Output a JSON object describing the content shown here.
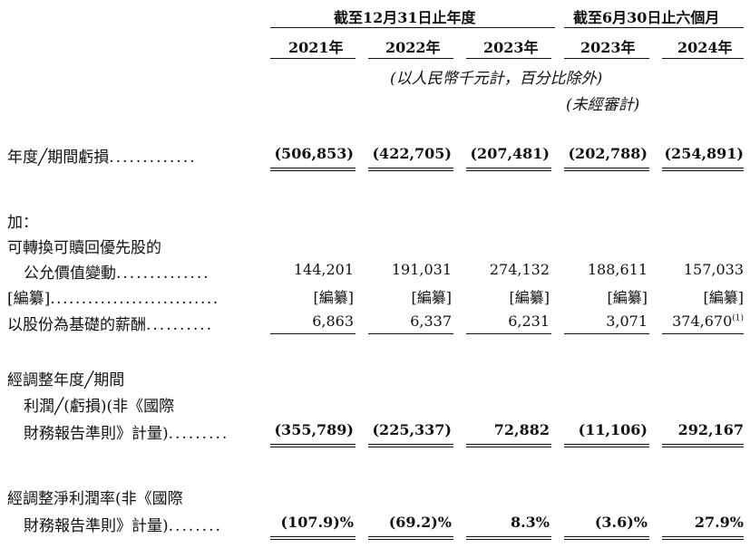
{
  "header": {
    "group_year": "截至12月31日止年度",
    "group_half": "截至6月30日止六個月",
    "columns": [
      "2021年",
      "2022年",
      "2023年",
      "2023年",
      "2024年"
    ],
    "unit_note": "(以人民幣千元計，百分比除外)",
    "unaudited_note": "(未經審計)"
  },
  "rows": {
    "loss": {
      "label": "年度╱期間虧損",
      "dots": ".............",
      "values": [
        "(506,853)",
        "(422,705)",
        "(207,481)",
        "(202,788)",
        "(254,891)"
      ]
    },
    "add_label": "加：",
    "fv": {
      "label_1": "可轉換可贖回優先股的",
      "label_2": "公允價值變動",
      "dots": "..............",
      "values": [
        "144,201",
        "191,031",
        "274,132",
        "188,611",
        "157,033"
      ]
    },
    "redacted": {
      "label": "[編纂]",
      "dots": "...........................",
      "values": [
        "[編纂]",
        "[編纂]",
        "[編纂]",
        "[編纂]",
        "[編纂]"
      ]
    },
    "share": {
      "label": "以股份為基礎的薪酬",
      "dots": "..........",
      "values": [
        "6,863",
        "6,337",
        "6,231",
        "3,071",
        "374,670"
      ],
      "footnote": "(1)"
    },
    "adj": {
      "label_1": "經調整年度╱期間",
      "label_2": "利潤╱(虧損)(非《國際",
      "label_3": "財務報告準則》計量)",
      "dots": ".........",
      "values": [
        "(355,789)",
        "(225,337)",
        "72,882",
        "(11,106)",
        "292,167"
      ]
    },
    "margin": {
      "label_1": "經調整淨利潤率(非《國際",
      "label_2": "財務報告準則》計量)",
      "dots": "........",
      "values": [
        "(107.9)%",
        "(69.2)%",
        "8.3%",
        "(3.6)%",
        "27.9%"
      ]
    }
  }
}
